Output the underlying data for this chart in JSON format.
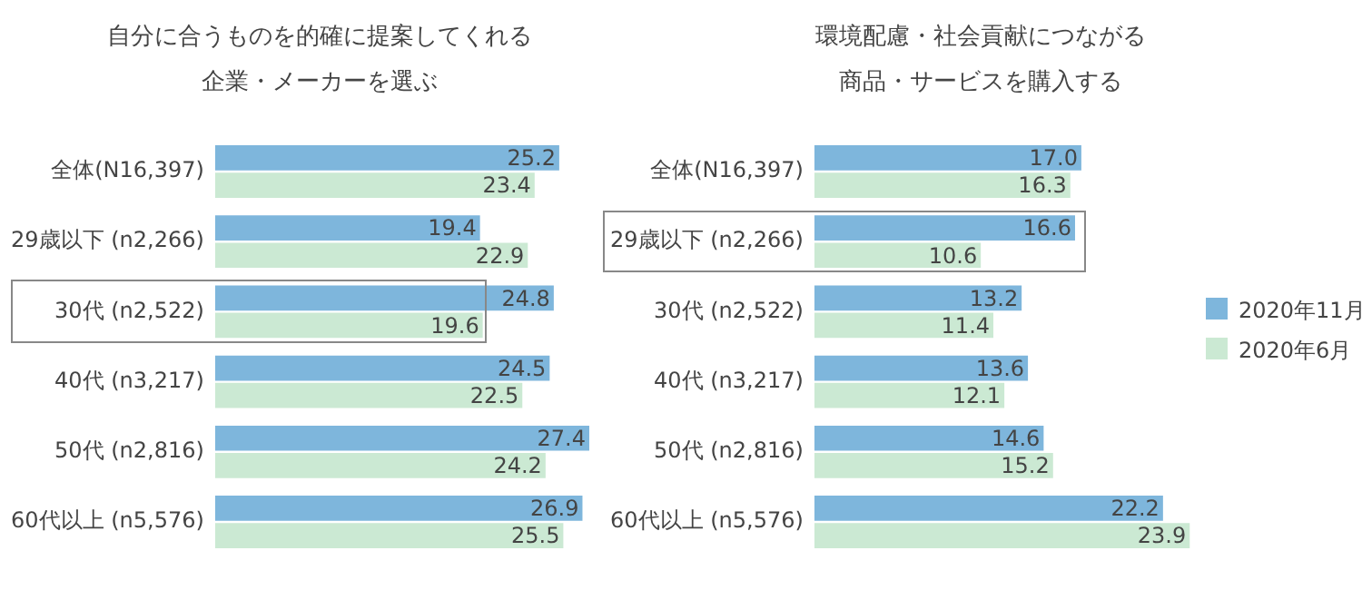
{
  "chart_data": [
    {
      "type": "bar",
      "orientation": "horizontal",
      "title": "自分に合うものを的確に提案してくれる企業・メーカーを選ぶ",
      "categories": [
        "全体(N16,397)",
        "29歳以下 (n2,266)",
        "30代 (n2,522)",
        "40代 (n3,217)",
        "50代 (n2,816)",
        "60代以上 (n5,576)"
      ],
      "series": [
        {
          "color": "#7eb6dc",
          "values": [
            25.2,
            19.4,
            24.8,
            24.5,
            27.4,
            26.9
          ],
          "value_labels": [
            "25.2",
            "19.4",
            "24.8",
            "24.5",
            "27.4",
            "26.9"
          ]
        },
        {
          "color": "#cbe9d3",
          "values": [
            23.4,
            22.9,
            19.6,
            22.5,
            24.2,
            25.5
          ],
          "value_labels": [
            "23.4",
            "22.9",
            "19.6",
            "22.5",
            "24.2",
            "25.5"
          ]
        }
      ],
      "xlim": [
        0,
        27.6
      ],
      "tick_labels": "y",
      "grid": false,
      "legend": false
    },
    {
      "type": "bar",
      "orientation": "horizontal",
      "title": "環境配慮・社会貢献につながる商品・サービスを購入する",
      "categories": [
        "全体(N16,397)",
        "29歳以下 (n2,266)",
        "30代 (n2,522)",
        "40代 (n3,217)",
        "50代 (n2,816)",
        "60代以上 (n5,576)"
      ],
      "series": [
        {
          "name": "2020年11月",
          "color": "#7eb6dc",
          "values": [
            17.0,
            16.6,
            13.2,
            13.6,
            14.6,
            22.2
          ],
          "value_labels": [
            "17.0",
            "16.6",
            "13.2",
            "13.6",
            "14.6",
            "22.2"
          ]
        },
        {
          "name": "2020年6月",
          "color": "#cbe9d3",
          "values": [
            16.3,
            10.6,
            11.4,
            12.1,
            15.2,
            23.9
          ],
          "value_labels": [
            "16.3",
            "10.6",
            "11.4",
            "12.1",
            "15.2",
            "23.9"
          ]
        }
      ],
      "xlim": [
        0,
        24
      ],
      "tick_labels": "y",
      "grid": false,
      "legend": "right"
    }
  ]
}
